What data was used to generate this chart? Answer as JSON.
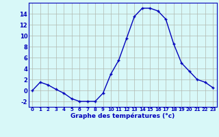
{
  "hours": [
    0,
    1,
    2,
    3,
    4,
    5,
    6,
    7,
    8,
    9,
    10,
    11,
    12,
    13,
    14,
    15,
    16,
    17,
    18,
    19,
    20,
    21,
    22,
    23
  ],
  "temperatures": [
    0.0,
    1.5,
    1.0,
    0.2,
    -0.5,
    -1.5,
    -2.0,
    -2.0,
    -2.0,
    -0.5,
    3.0,
    5.5,
    9.5,
    13.5,
    15.0,
    15.0,
    14.5,
    13.0,
    8.5,
    5.0,
    3.5,
    2.0,
    1.5,
    0.5
  ],
  "xlabel": "Graphe des températures (°c)",
  "ylim": [
    -3,
    16
  ],
  "yticks": [
    -2,
    0,
    2,
    4,
    6,
    8,
    10,
    12,
    14
  ],
  "xticks": [
    0,
    1,
    2,
    3,
    4,
    5,
    6,
    7,
    8,
    9,
    10,
    11,
    12,
    13,
    14,
    15,
    16,
    17,
    18,
    19,
    20,
    21,
    22,
    23
  ],
  "line_color": "#0000bb",
  "marker": "+",
  "bg_color": "#d8f8f8",
  "grid_color": "#b0b8b0",
  "tick_fontsize": 5.0,
  "xlabel_fontsize": 6.5
}
